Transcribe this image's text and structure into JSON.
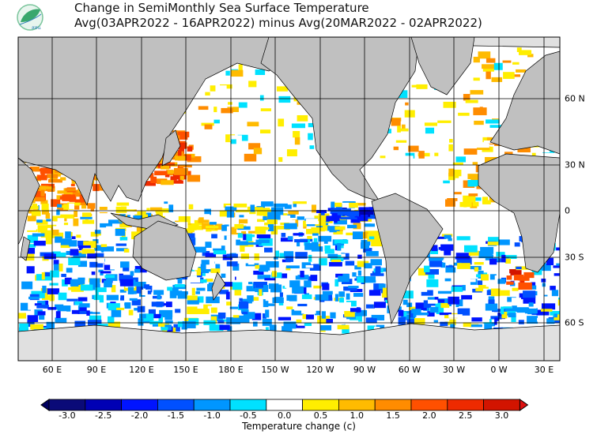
{
  "header": {
    "logo_text": "สสน",
    "title_line1": "Change in SemiMonthly Sea Surface Temperature",
    "title_line2": "Avg(03APR2022 - 16APR2022) minus Avg(20MAR2022 - 02APR2022)"
  },
  "map": {
    "lon_labels": [
      "60 E",
      "90 E",
      "120 E",
      "150 E",
      "180 E",
      "150 W",
      "120 W",
      "90 W",
      "60 W",
      "30 W",
      "0 W",
      "30 E"
    ],
    "lat_labels": [
      "60 N",
      "30 N",
      "0",
      "30 S",
      "60 S"
    ],
    "land_color": "#c0c0c0",
    "ice_color": "#e0e0e0"
  },
  "colorbar": {
    "title": "Temperature change  (c)",
    "labels": [
      "-3.0",
      "-2.5",
      "-2.0",
      "-1.5",
      "-1.0",
      "-0.5",
      "0.0",
      "0.5",
      "1.0",
      "1.5",
      "2.0",
      "2.5",
      "3.0"
    ],
    "colors": [
      "#0a0a78",
      "#0000b4",
      "#0014ff",
      "#0050ff",
      "#0096ff",
      "#00e1ff",
      "#ffffff",
      "#ffee00",
      "#ffbb00",
      "#ff8c00",
      "#ff5000",
      "#ee2a00",
      "#d21400"
    ],
    "under_color": "#000060",
    "over_color": "#dd1010"
  }
}
